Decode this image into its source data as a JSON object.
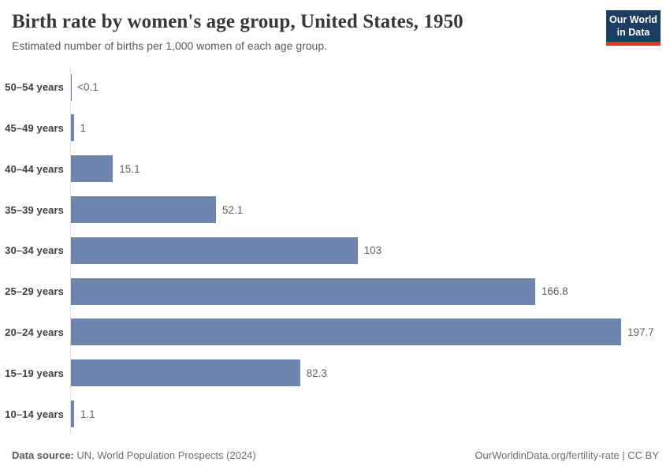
{
  "header": {
    "title": "Birth rate by women's age group, United States, 1950",
    "subtitle": "Estimated number of births per 1,000 women of each age group.",
    "logo": {
      "line1": "Our World",
      "line2": "in Data"
    }
  },
  "chart_data": {
    "type": "bar",
    "orientation": "horizontal",
    "title": "Birth rate by women's age group, United States, 1950",
    "xlabel": "",
    "ylabel": "",
    "categories": [
      "50–54 years",
      "45–49 years",
      "40–44 years",
      "35–39 years",
      "30–34 years",
      "25–29 years",
      "20–24 years",
      "15–19 years",
      "10–14 years"
    ],
    "values": [
      0.05,
      1,
      15.1,
      52.1,
      103,
      166.8,
      197.7,
      82.3,
      1.1
    ],
    "value_labels": [
      "<0.1",
      "1",
      "15.1",
      "52.1",
      "103",
      "166.8",
      "197.7",
      "82.3",
      "1.1"
    ],
    "xlim": [
      0,
      197.7
    ],
    "grid": false,
    "legend": false,
    "bar_color": "#6e85ad",
    "axis_color": "#dcdcdc"
  },
  "footer": {
    "source_label": "Data source:",
    "source_text": " UN, World Population Prospects (2024)",
    "rights": "OurWorldinData.org/fertility-rate | CC BY"
  },
  "colors": {
    "logo_background": "#1d3d63",
    "logo_accent": "#d93c2c",
    "title_text": "#383838",
    "subtitle_text": "#5b5b5b",
    "value_text": "#636363"
  }
}
